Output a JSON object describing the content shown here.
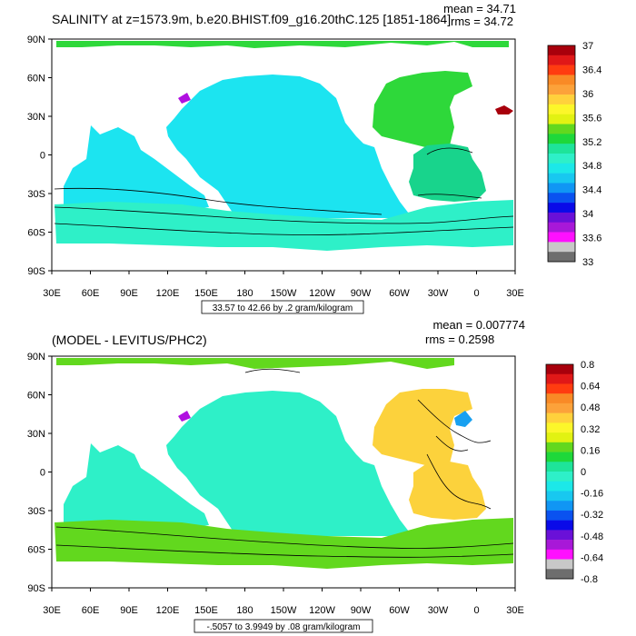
{
  "panels": [
    {
      "title": "SALINITY at z=1573.9m, b.e20.BHIST.f09_g16.20thC.125 [1851-1864]",
      "stats": {
        "mean": "mean = 34.71",
        "rms": "rms = 34.72"
      },
      "lat_labels": [
        "90N",
        "60N",
        "30N",
        "0",
        "30S",
        "60S",
        "90S"
      ],
      "lon_labels": [
        "30E",
        "60E",
        "90E",
        "120E",
        "150E",
        "180",
        "150W",
        "120W",
        "90W",
        "60W",
        "30W",
        "0",
        "30E"
      ],
      "contour_info": "33.57 to 42.66 by .2 gram/kilogram",
      "colorbar": {
        "labels": [
          "37",
          "36.4",
          "36",
          "35.6",
          "35.2",
          "34.8",
          "34.4",
          "34",
          "33.6",
          "33"
        ],
        "colors": [
          "#a8000c",
          "#e01818",
          "#ff3c10",
          "#f98a26",
          "#fca23a",
          "#ffd13c",
          "#fcf62a",
          "#e2f212",
          "#62d81e",
          "#1ed83a",
          "#1ee49a",
          "#2ef0c8",
          "#1ce8e8",
          "#18c8f0",
          "#1096f4",
          "#0a52f0",
          "#0a0ae8",
          "#6a10d8",
          "#a818d8",
          "#ff10ff",
          "#c8c8c8",
          "#6e6e6e"
        ]
      },
      "region_colors": {
        "arctic": "#2ed83a",
        "north_atlantic": "#2ed83a",
        "pacific": "#1ce4f0",
        "indian": "#1ce4f0",
        "south_atlantic": "#18d48c",
        "southern": "#2ef0c8",
        "mediterranean": "#a8000c",
        "okhotsk": "#b010e0"
      }
    },
    {
      "title": "(MODEL - LEVITUS/PHC2)",
      "stats": {
        "mean": "mean = 0.007774",
        "rms": "rms = 0.2598"
      },
      "lat_labels": [
        "90N",
        "60N",
        "30N",
        "0",
        "30S",
        "60S",
        "90S"
      ],
      "lon_labels": [
        "30E",
        "60E",
        "90E",
        "120E",
        "150E",
        "180",
        "150W",
        "120W",
        "90W",
        "60W",
        "30W",
        "0",
        "30E"
      ],
      "contour_info": "-.5057 to 3.9949 by .08 gram/kilogram",
      "colorbar": {
        "labels": [
          "0.8",
          "0.64",
          "0.48",
          "0.32",
          "0.16",
          "0",
          "-0.16",
          "-0.32",
          "-0.48",
          "-0.64",
          "-0.8"
        ],
        "colors": [
          "#a8000c",
          "#e01818",
          "#ff3c10",
          "#f98a26",
          "#fca23a",
          "#ffd13c",
          "#fcf62a",
          "#e2f212",
          "#62d81e",
          "#1ed83a",
          "#1ee49a",
          "#2ef0c8",
          "#1ce8e8",
          "#18c8f0",
          "#1096f4",
          "#0a52f0",
          "#0a0ae8",
          "#6a10d8",
          "#a818d8",
          "#ff10ff",
          "#c8c8c8",
          "#6e6e6e"
        ]
      },
      "region_colors": {
        "arctic": "#62d81e",
        "north_atlantic": "#fcd23c",
        "pacific": "#2ef0c8",
        "indian": "#2ef0c8",
        "south_atlantic": "#fcd23c",
        "southern": "#62d81e",
        "mediterranean": "#18a0f0",
        "okhotsk": "#b010e0"
      }
    }
  ]
}
